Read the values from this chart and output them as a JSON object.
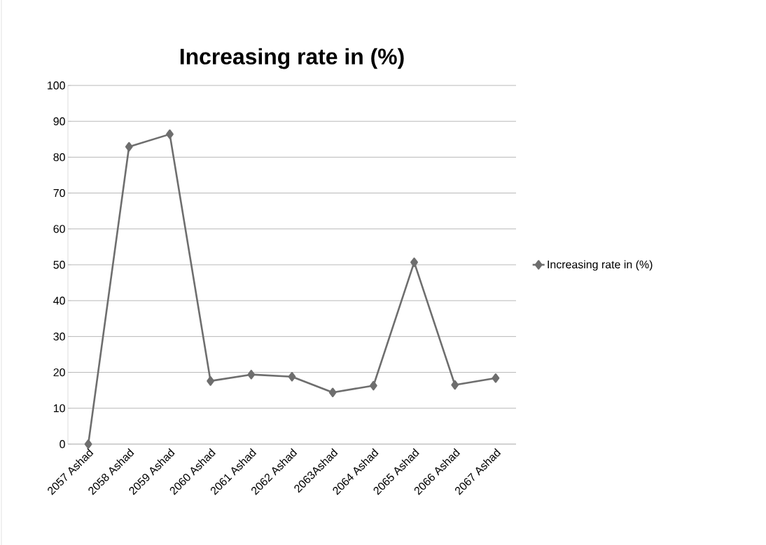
{
  "chart_data": {
    "type": "line",
    "title": "Increasing rate in (%)",
    "categories": [
      "2057 Ashad",
      "2058 Ashad",
      "2059 Ashad",
      "2060 Ashad",
      "2061 Ashad",
      "2062 Ashad",
      "2063Ashad",
      "2064 Ashad",
      "2065 Ashad",
      "2066 Ashad",
      "2067 Ashad"
    ],
    "series": [
      {
        "name": "Increasing rate in (%)",
        "color": "#6e6e6e",
        "values": [
          0,
          82.9,
          86.4,
          17.6,
          19.4,
          18.8,
          14.4,
          16.3,
          50.7,
          16.5,
          18.4
        ]
      }
    ],
    "ylim": [
      0,
      100
    ],
    "yticks": [
      0,
      10,
      20,
      30,
      40,
      50,
      60,
      70,
      80,
      90,
      100
    ],
    "grid": "y",
    "legend": "right",
    "marker": "diamond",
    "line_style": "solid"
  }
}
